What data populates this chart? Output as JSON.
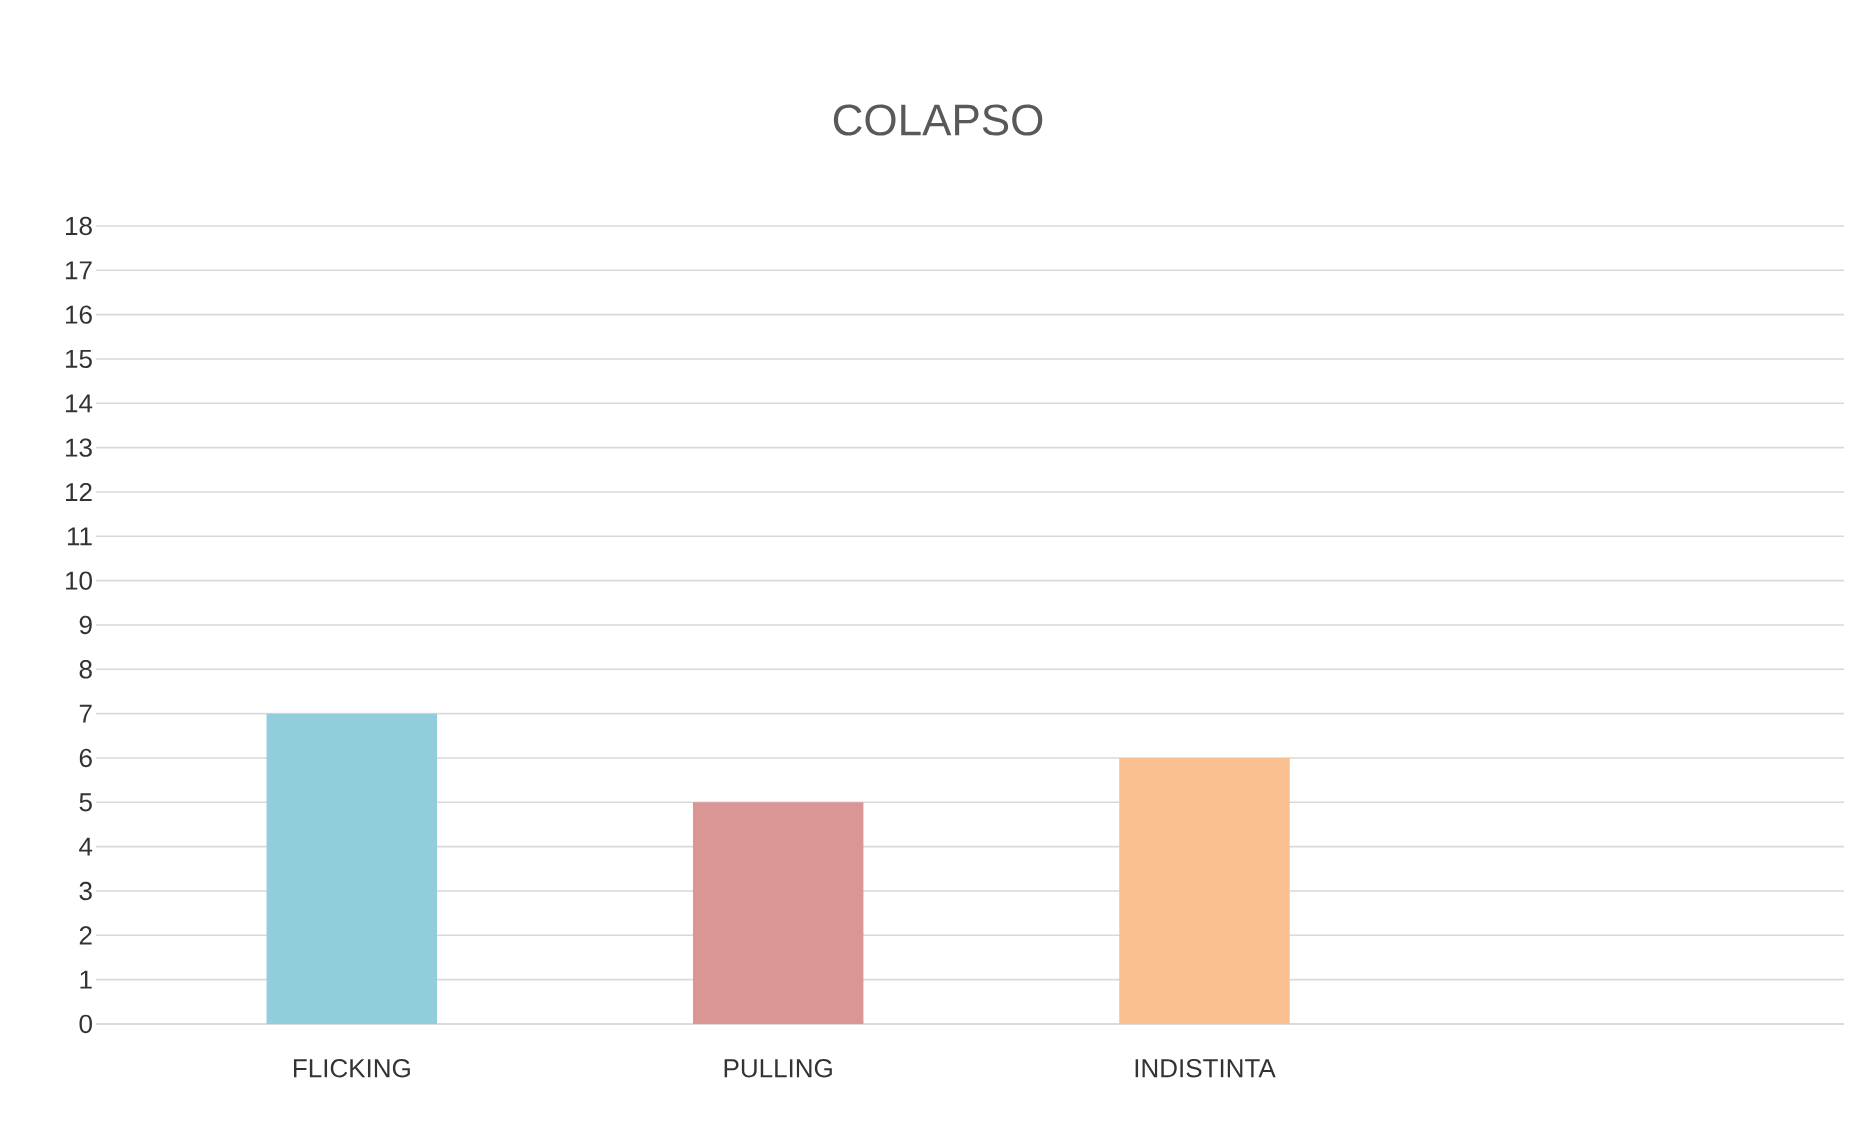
{
  "chart_data": {
    "type": "bar",
    "title": "COLAPSO",
    "categories": [
      "FLICKING",
      "PULLING",
      "INDISTINTA",
      null
    ],
    "values": [
      7,
      5,
      6,
      null
    ],
    "colors": [
      "#92cddc",
      "#d99694",
      "#fac090",
      "#92cddc"
    ],
    "ylim": [
      0,
      18
    ],
    "yticks": [
      0,
      1,
      2,
      3,
      4,
      5,
      6,
      7,
      8,
      9,
      10,
      11,
      12,
      13,
      14,
      15,
      16,
      17,
      18
    ],
    "grid": "y"
  }
}
